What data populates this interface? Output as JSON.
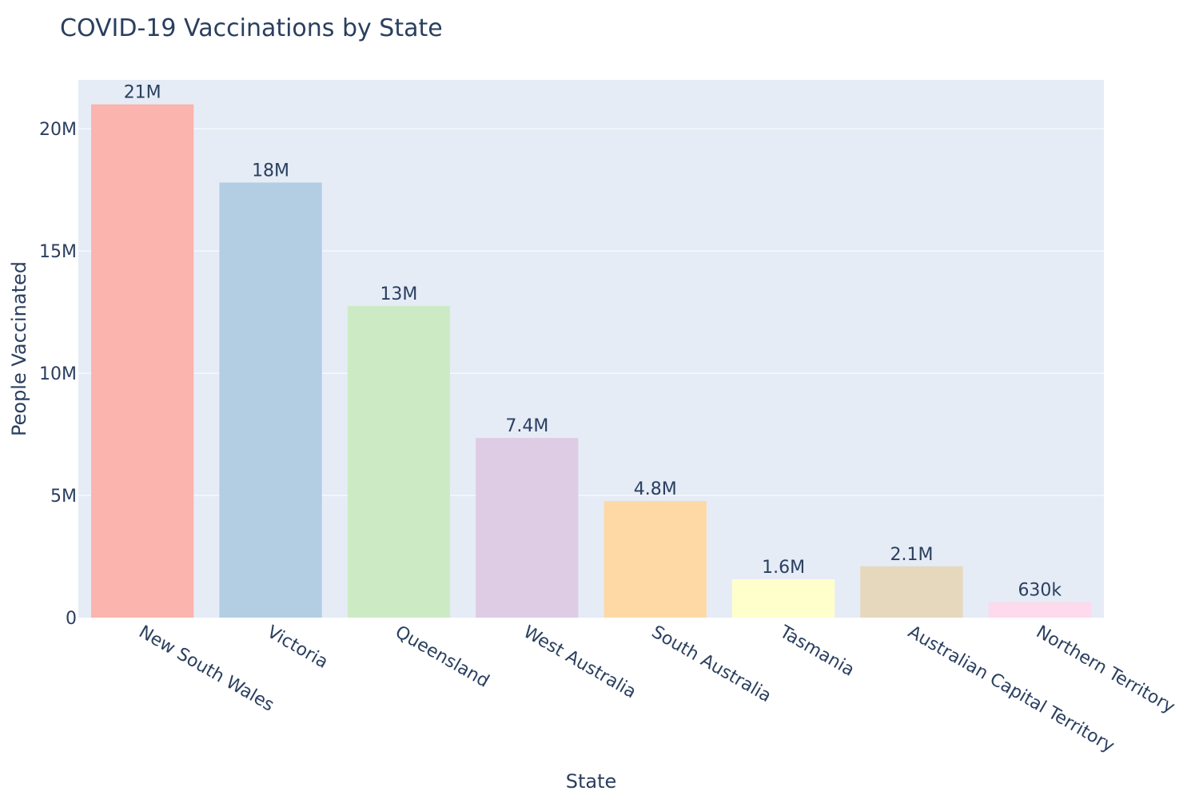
{
  "chart_data": {
    "type": "bar",
    "title": "COVID-19 Vaccinations by State",
    "xlabel": "State",
    "ylabel": "People Vaccinated",
    "ylim": [
      0,
      22000000
    ],
    "y_ticks": [
      {
        "value": 0,
        "label": "0"
      },
      {
        "value": 5000000,
        "label": "5M"
      },
      {
        "value": 10000000,
        "label": "10M"
      },
      {
        "value": 15000000,
        "label": "15M"
      },
      {
        "value": 20000000,
        "label": "20M"
      }
    ],
    "grid": true,
    "categories": [
      "New South Wales",
      "Victoria",
      "Queensland",
      "West Australia",
      "South Australia",
      "Tasmania",
      "Australian Capital Territory",
      "Northern Territory"
    ],
    "values": [
      21000000,
      17800000,
      12750000,
      7350000,
      4770000,
      1570000,
      2100000,
      630000
    ],
    "value_labels": [
      "21M",
      "18M",
      "13M",
      "7.4M",
      "4.8M",
      "1.6M",
      "2.1M",
      "630k"
    ],
    "colors": [
      "#fbb4ae",
      "#b3cde3",
      "#ccebc5",
      "#decbe4",
      "#fed9a6",
      "#ffffcc",
      "#e5d8bd",
      "#fddaec"
    ],
    "plot_background": "#e5ecf6",
    "text_color": "#2a3f5f"
  }
}
